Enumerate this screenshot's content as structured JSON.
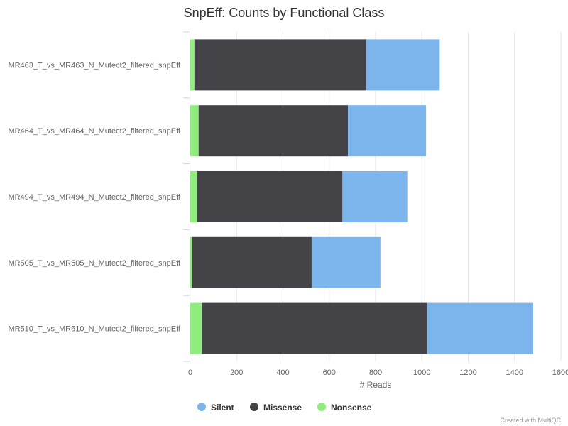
{
  "chart_data": {
    "type": "bar",
    "orientation": "horizontal",
    "stacked": true,
    "title": "SnpEff: Counts by Functional Class",
    "xlabel": "# Reads",
    "ylabel": "",
    "xlim": [
      0,
      1600
    ],
    "xticks": [
      0,
      200,
      400,
      600,
      800,
      1000,
      1200,
      1400,
      1600
    ],
    "grid": true,
    "legend_position": "bottom",
    "categories": [
      "MR463_T_vs_MR463_N_Mutect2_filtered_snpEff",
      "MR464_T_vs_MR464_N_Mutect2_filtered_snpEff",
      "MR494_T_vs_MR494_N_Mutect2_filtered_snpEff",
      "MR505_T_vs_MR505_N_Mutect2_filtered_snpEff",
      "MR510_T_vs_MR510_N_Mutect2_filtered_snpEff"
    ],
    "series": [
      {
        "name": "Nonsense",
        "color": "#90ed7d",
        "values": [
          18,
          36,
          30,
          8,
          50
        ]
      },
      {
        "name": "Missense",
        "color": "#434348",
        "values": [
          743,
          645,
          627,
          516,
          972
        ]
      },
      {
        "name": "Silent",
        "color": "#7cb5ec",
        "values": [
          316,
          337,
          280,
          297,
          458
        ]
      }
    ],
    "legend_order": [
      "Silent",
      "Missense",
      "Nonsense"
    ],
    "credit": "Created with MultiQC"
  }
}
